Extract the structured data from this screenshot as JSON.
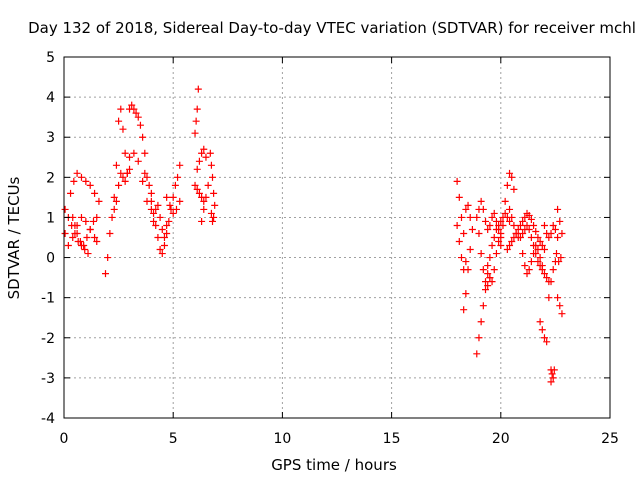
{
  "colors": {
    "series": "#ff0000",
    "grid": "#a0a0a0",
    "axis": "#000000",
    "background": "#ffffff"
  },
  "chart_data": {
    "type": "scatter",
    "title": "Day 132 of 2018, Sidereal Day-to-day VTEC variation (SDTVAR) for receiver mchl",
    "xlabel": "GPS time / hours",
    "ylabel": "SDTVAR / TECUs",
    "xlim": [
      0,
      25
    ],
    "ylim": [
      -4,
      5
    ],
    "x_ticks": [
      0,
      5,
      10,
      15,
      20,
      25
    ],
    "y_ticks": [
      -4,
      -3,
      -2,
      -1,
      0,
      1,
      2,
      3,
      4,
      5
    ],
    "x_tick_labels": [
      "0",
      "5",
      "10",
      "15",
      "20",
      "25"
    ],
    "y_tick_labels": [
      "-4",
      "-3",
      "-2",
      "-1",
      "0",
      "1",
      "2",
      "3",
      "4",
      "5"
    ],
    "grid": true,
    "marker": "+",
    "series": [
      {
        "name": "SDTVAR",
        "traces": [
          {
            "x": [
              0.05,
              0.2,
              0.4,
              0.6,
              0.8,
              1.0,
              1.2,
              1.4,
              1.5
            ],
            "y": [
              0.6,
              0.3,
              0.5,
              0.8,
              1.0,
              0.9,
              0.7,
              0.5,
              0.4
            ]
          },
          {
            "x": [
              0.05,
              0.2,
              0.35,
              0.5,
              0.65,
              0.8,
              0.95,
              1.1
            ],
            "y": [
              1.2,
              1.0,
              0.8,
              0.6,
              0.4,
              0.3,
              0.2,
              0.1
            ]
          },
          {
            "x": [
              0.3,
              0.45,
              0.6,
              0.8,
              1.0,
              1.2,
              1.4,
              1.6
            ],
            "y": [
              1.6,
              1.9,
              2.1,
              2.0,
              1.9,
              1.8,
              1.6,
              1.4
            ]
          },
          {
            "x": [
              0.4,
              0.5,
              0.6,
              0.75,
              0.9,
              1.05,
              1.2,
              1.35,
              1.5
            ],
            "y": [
              1.0,
              0.8,
              0.6,
              0.4,
              0.3,
              0.5,
              0.7,
              0.9,
              1.0
            ]
          },
          {
            "x": [
              1.9,
              2.0,
              2.1,
              2.2,
              2.3
            ],
            "y": [
              -0.4,
              0.0,
              0.6,
              1.0,
              1.2
            ]
          },
          {
            "x": [
              2.3,
              2.4,
              2.5,
              2.6,
              2.7,
              2.8,
              2.9
            ],
            "y": [
              1.5,
              2.3,
              3.4,
              3.7,
              3.2,
              2.6,
              2.1
            ]
          },
          {
            "x": [
              2.4,
              2.5,
              2.6,
              2.7,
              2.8,
              2.9,
              3.0
            ],
            "y": [
              1.4,
              1.8,
              2.1,
              2.0,
              1.9,
              2.1,
              2.5
            ]
          },
          {
            "x": [
              3.0,
              3.1,
              3.2,
              3.3,
              3.4,
              3.5,
              3.6,
              3.7
            ],
            "y": [
              3.7,
              3.8,
              3.7,
              3.6,
              3.5,
              3.3,
              3.0,
              2.6
            ]
          },
          {
            "x": [
              3.0,
              3.2,
              3.4,
              3.6,
              3.8,
              4.0
            ],
            "y": [
              2.2,
              2.6,
              2.4,
              1.9,
              1.4,
              1.2
            ]
          },
          {
            "x": [
              3.7,
              3.8,
              3.9,
              4.0
            ],
            "y": [
              2.1,
              2.0,
              1.8,
              1.6
            ]
          },
          {
            "x": [
              4.0,
              4.1,
              4.2,
              4.3,
              4.4,
              4.5,
              4.6
            ],
            "y": [
              1.4,
              1.1,
              0.8,
              0.5,
              0.2,
              0.1,
              0.3
            ]
          },
          {
            "x": [
              4.1,
              4.2,
              4.3,
              4.4,
              4.5,
              4.6,
              4.7
            ],
            "y": [
              0.9,
              1.2,
              1.3,
              1.0,
              0.7,
              0.5,
              0.8
            ]
          },
          {
            "x": [
              4.7,
              4.8,
              4.9,
              5.0,
              5.1,
              5.2,
              5.3
            ],
            "y": [
              0.6,
              0.9,
              1.2,
              1.5,
              1.8,
              2.0,
              2.3
            ]
          },
          {
            "x": [
              4.7,
              4.85,
              5.0,
              5.15,
              5.3
            ],
            "y": [
              1.5,
              1.3,
              1.1,
              1.2,
              1.4
            ]
          },
          {
            "x": [
              6.0,
              6.05,
              6.1,
              6.15
            ],
            "y": [
              3.1,
              3.4,
              3.7,
              4.2
            ]
          },
          {
            "x": [
              6.0,
              6.1,
              6.2,
              6.3,
              6.4
            ],
            "y": [
              1.8,
              1.7,
              1.6,
              1.5,
              1.4
            ]
          },
          {
            "x": [
              6.1,
              6.2,
              6.3,
              6.4,
              6.5
            ],
            "y": [
              2.2,
              2.4,
              2.6,
              2.7,
              2.5
            ]
          },
          {
            "x": [
              6.3,
              6.4,
              6.5,
              6.6
            ],
            "y": [
              0.9,
              1.2,
              1.5,
              1.8
            ]
          },
          {
            "x": [
              6.7,
              6.75,
              6.8,
              6.85,
              6.9
            ],
            "y": [
              2.6,
              2.3,
              2.0,
              1.6,
              1.3
            ]
          },
          {
            "x": [
              6.75,
              6.8,
              6.85
            ],
            "y": [
              1.1,
              0.9,
              1.0
            ]
          },
          {
            "x": [
              18.0,
              18.1,
              18.2,
              18.3
            ],
            "y": [
              1.9,
              1.5,
              1.0,
              0.6
            ]
          },
          {
            "x": [
              18.0,
              18.1,
              18.2,
              18.3,
              18.4
            ],
            "y": [
              0.8,
              0.4,
              0.0,
              -0.3,
              -0.1
            ]
          },
          {
            "x": [
              18.3,
              18.4,
              18.5,
              18.6
            ],
            "y": [
              -1.3,
              -0.9,
              -0.3,
              0.2
            ]
          },
          {
            "x": [
              18.4,
              18.5,
              18.6,
              18.7
            ],
            "y": [
              1.2,
              1.3,
              1.0,
              0.7
            ]
          },
          {
            "x": [
              18.9,
              19.0,
              19.1,
              19.2,
              19.3,
              19.4,
              19.5,
              19.6,
              19.7,
              19.8,
              19.9,
              20.0,
              20.1,
              20.2,
              20.3,
              20.4
            ],
            "y": [
              -2.4,
              -2.0,
              -1.6,
              -1.2,
              -0.8,
              -0.4,
              0.0,
              0.3,
              0.5,
              0.7,
              0.8,
              0.9,
              1.0,
              1.1,
              1.0,
              0.9
            ]
          },
          {
            "x": [
              18.9,
              19.0,
              19.1,
              19.2,
              19.3,
              19.4,
              19.5
            ],
            "y": [
              1.0,
              0.6,
              0.1,
              -0.3,
              -0.6,
              -0.7,
              -0.5
            ]
          },
          {
            "x": [
              19.0,
              19.1,
              19.2,
              19.3,
              19.4,
              19.5,
              19.6,
              19.7,
              19.8,
              19.9,
              20.0
            ],
            "y": [
              1.2,
              1.4,
              1.2,
              0.9,
              0.7,
              0.8,
              1.0,
              1.1,
              0.9,
              0.7,
              0.5
            ]
          },
          {
            "x": [
              19.4,
              19.5,
              19.6,
              19.7,
              19.8,
              19.9,
              20.0
            ],
            "y": [
              -0.2,
              -0.5,
              -0.6,
              -0.3,
              0.1,
              0.4,
              0.6
            ]
          },
          {
            "x": [
              20.0,
              20.1,
              20.2,
              20.3,
              20.4,
              20.5,
              20.6
            ],
            "y": [
              0.3,
              0.8,
              1.4,
              1.8,
              2.1,
              2.0,
              1.7
            ]
          },
          {
            "x": [
              20.3,
              20.4,
              20.5,
              20.6,
              20.7,
              20.8,
              20.9,
              21.0,
              21.1,
              21.2,
              21.3,
              21.4,
              21.5,
              21.6,
              21.7,
              21.8,
              21.9,
              22.0
            ],
            "y": [
              0.2,
              0.3,
              0.4,
              0.5,
              0.6,
              0.7,
              0.8,
              0.9,
              1.0,
              1.1,
              1.05,
              0.95,
              0.8,
              0.65,
              0.5,
              0.4,
              0.3,
              0.2
            ]
          },
          {
            "x": [
              20.4,
              20.5,
              20.6,
              20.7,
              20.8,
              20.9,
              21.0,
              21.1,
              21.2,
              21.3,
              21.4,
              21.5,
              21.6,
              21.7,
              21.8,
              21.9,
              22.0,
              22.1,
              22.2
            ],
            "y": [
              1.2,
              1.0,
              0.8,
              0.6,
              0.5,
              0.5,
              0.6,
              0.7,
              0.8,
              0.7,
              0.5,
              0.3,
              0.1,
              -0.1,
              -0.2,
              -0.3,
              -0.4,
              -0.5,
              -0.6
            ]
          },
          {
            "x": [
              21.0,
              21.1,
              21.2,
              21.3,
              21.4,
              21.5,
              21.6,
              21.7,
              21.8,
              21.9
            ],
            "y": [
              0.1,
              -0.2,
              -0.4,
              -0.3,
              -0.1,
              0.1,
              0.3,
              0.2,
              0.0,
              -0.2
            ]
          },
          {
            "x": [
              21.8,
              21.9,
              22.0,
              22.1
            ],
            "y": [
              -1.6,
              -1.8,
              -2.0,
              -2.1
            ]
          },
          {
            "x": [
              22.0,
              22.1,
              22.2,
              22.3,
              22.4,
              22.5,
              22.6
            ],
            "y": [
              0.8,
              0.6,
              0.5,
              0.6,
              0.8,
              0.7,
              0.5
            ]
          },
          {
            "x": [
              22.2,
              22.3,
              22.4,
              22.5
            ],
            "y": [
              -1.0,
              -0.6,
              -0.3,
              -0.1
            ]
          },
          {
            "x": [
              22.3,
              22.4
            ],
            "y": [
              -2.8,
              -3.0
            ]
          },
          {
            "x": [
              22.3,
              22.35,
              22.45
            ],
            "y": [
              -3.1,
              -2.9,
              -2.8
            ]
          },
          {
            "x": [
              22.6,
              22.7,
              22.8
            ],
            "y": [
              1.2,
              0.9,
              0.6
            ]
          },
          {
            "x": [
              22.55,
              22.65,
              22.75
            ],
            "y": [
              0.1,
              -0.1,
              0.0
            ]
          },
          {
            "x": [
              22.6,
              22.7,
              22.8
            ],
            "y": [
              -1.0,
              -1.2,
              -1.4
            ]
          }
        ]
      }
    ]
  }
}
